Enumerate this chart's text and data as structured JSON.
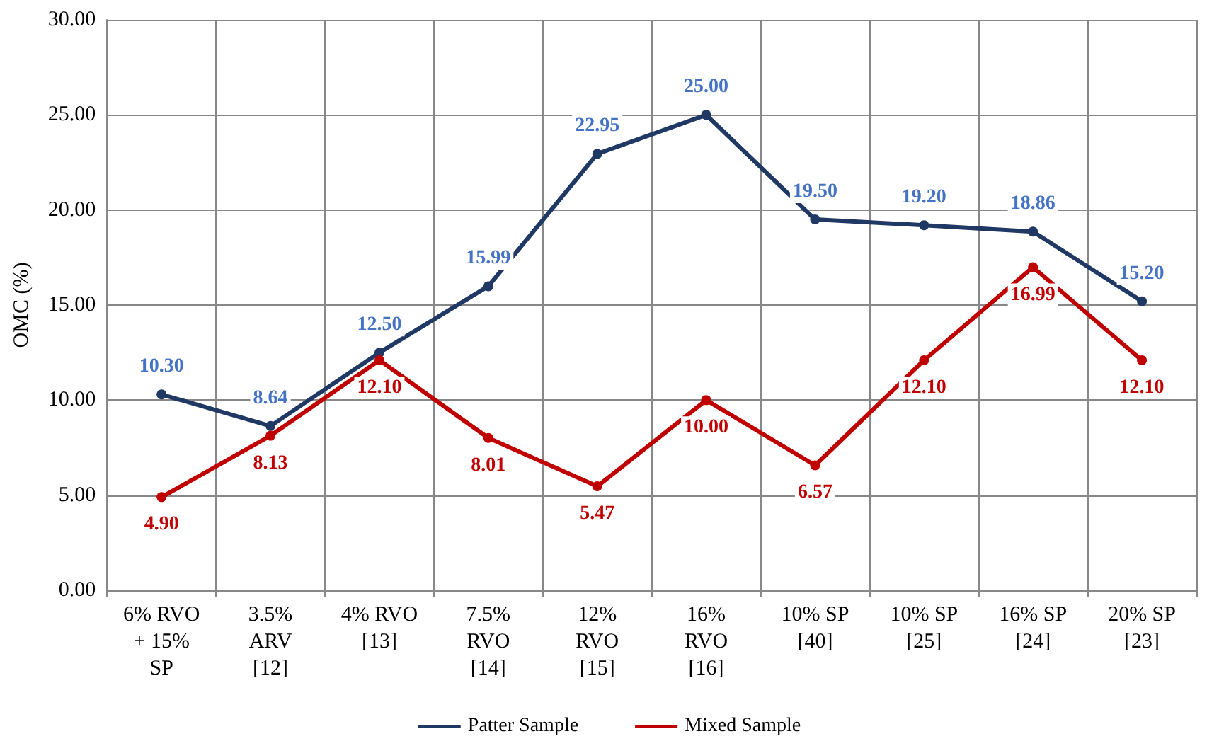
{
  "chart_data": {
    "type": "line",
    "ylabel": "OMC (%)",
    "categories": [
      "6% RVO\n+ 15%\nSP",
      "3.5%\nARV\n[12]",
      "4% RVO\n[13]",
      "7.5%\nRVO\n[14]",
      "12%\nRVO\n[15]",
      "16%\nRVO\n[16]",
      "10% SP\n[40]",
      "10% SP\n[25]",
      "16% SP\n[24]",
      "20% SP\n[23]"
    ],
    "series": [
      {
        "name": "Patter Sample",
        "color": "#203864",
        "values": [
          10.3,
          8.64,
          12.5,
          15.99,
          22.95,
          25.0,
          19.5,
          19.2,
          18.86,
          15.2
        ],
        "value_labels": [
          "10.30",
          "8.64",
          "12.50",
          "15.99",
          "22.95",
          "25.00",
          "19.50",
          "19.20",
          "18.86",
          "15.20"
        ]
      },
      {
        "name": "Mixed Sample",
        "color": "#c00000",
        "values": [
          4.9,
          8.13,
          12.1,
          8.01,
          5.47,
          10.0,
          6.57,
          12.1,
          16.99,
          12.1
        ],
        "value_labels": [
          "4.90",
          "8.13",
          "12.10",
          "8.01",
          "5.47",
          "10.00",
          "6.57",
          "12.10",
          "16.99",
          "12.10"
        ]
      }
    ],
    "ylim": [
      0,
      30
    ],
    "yticks": [
      {
        "value": 0,
        "label": "0.00"
      },
      {
        "value": 5,
        "label": "5.00"
      },
      {
        "value": 10,
        "label": "10.00"
      },
      {
        "value": 15,
        "label": "15.00"
      },
      {
        "value": 20,
        "label": "20.00"
      },
      {
        "value": 25,
        "label": "25.00"
      },
      {
        "value": 30,
        "label": "30.00"
      }
    ],
    "grid": true,
    "legend": "bottom",
    "marker": "circle",
    "line_style": "solid"
  }
}
